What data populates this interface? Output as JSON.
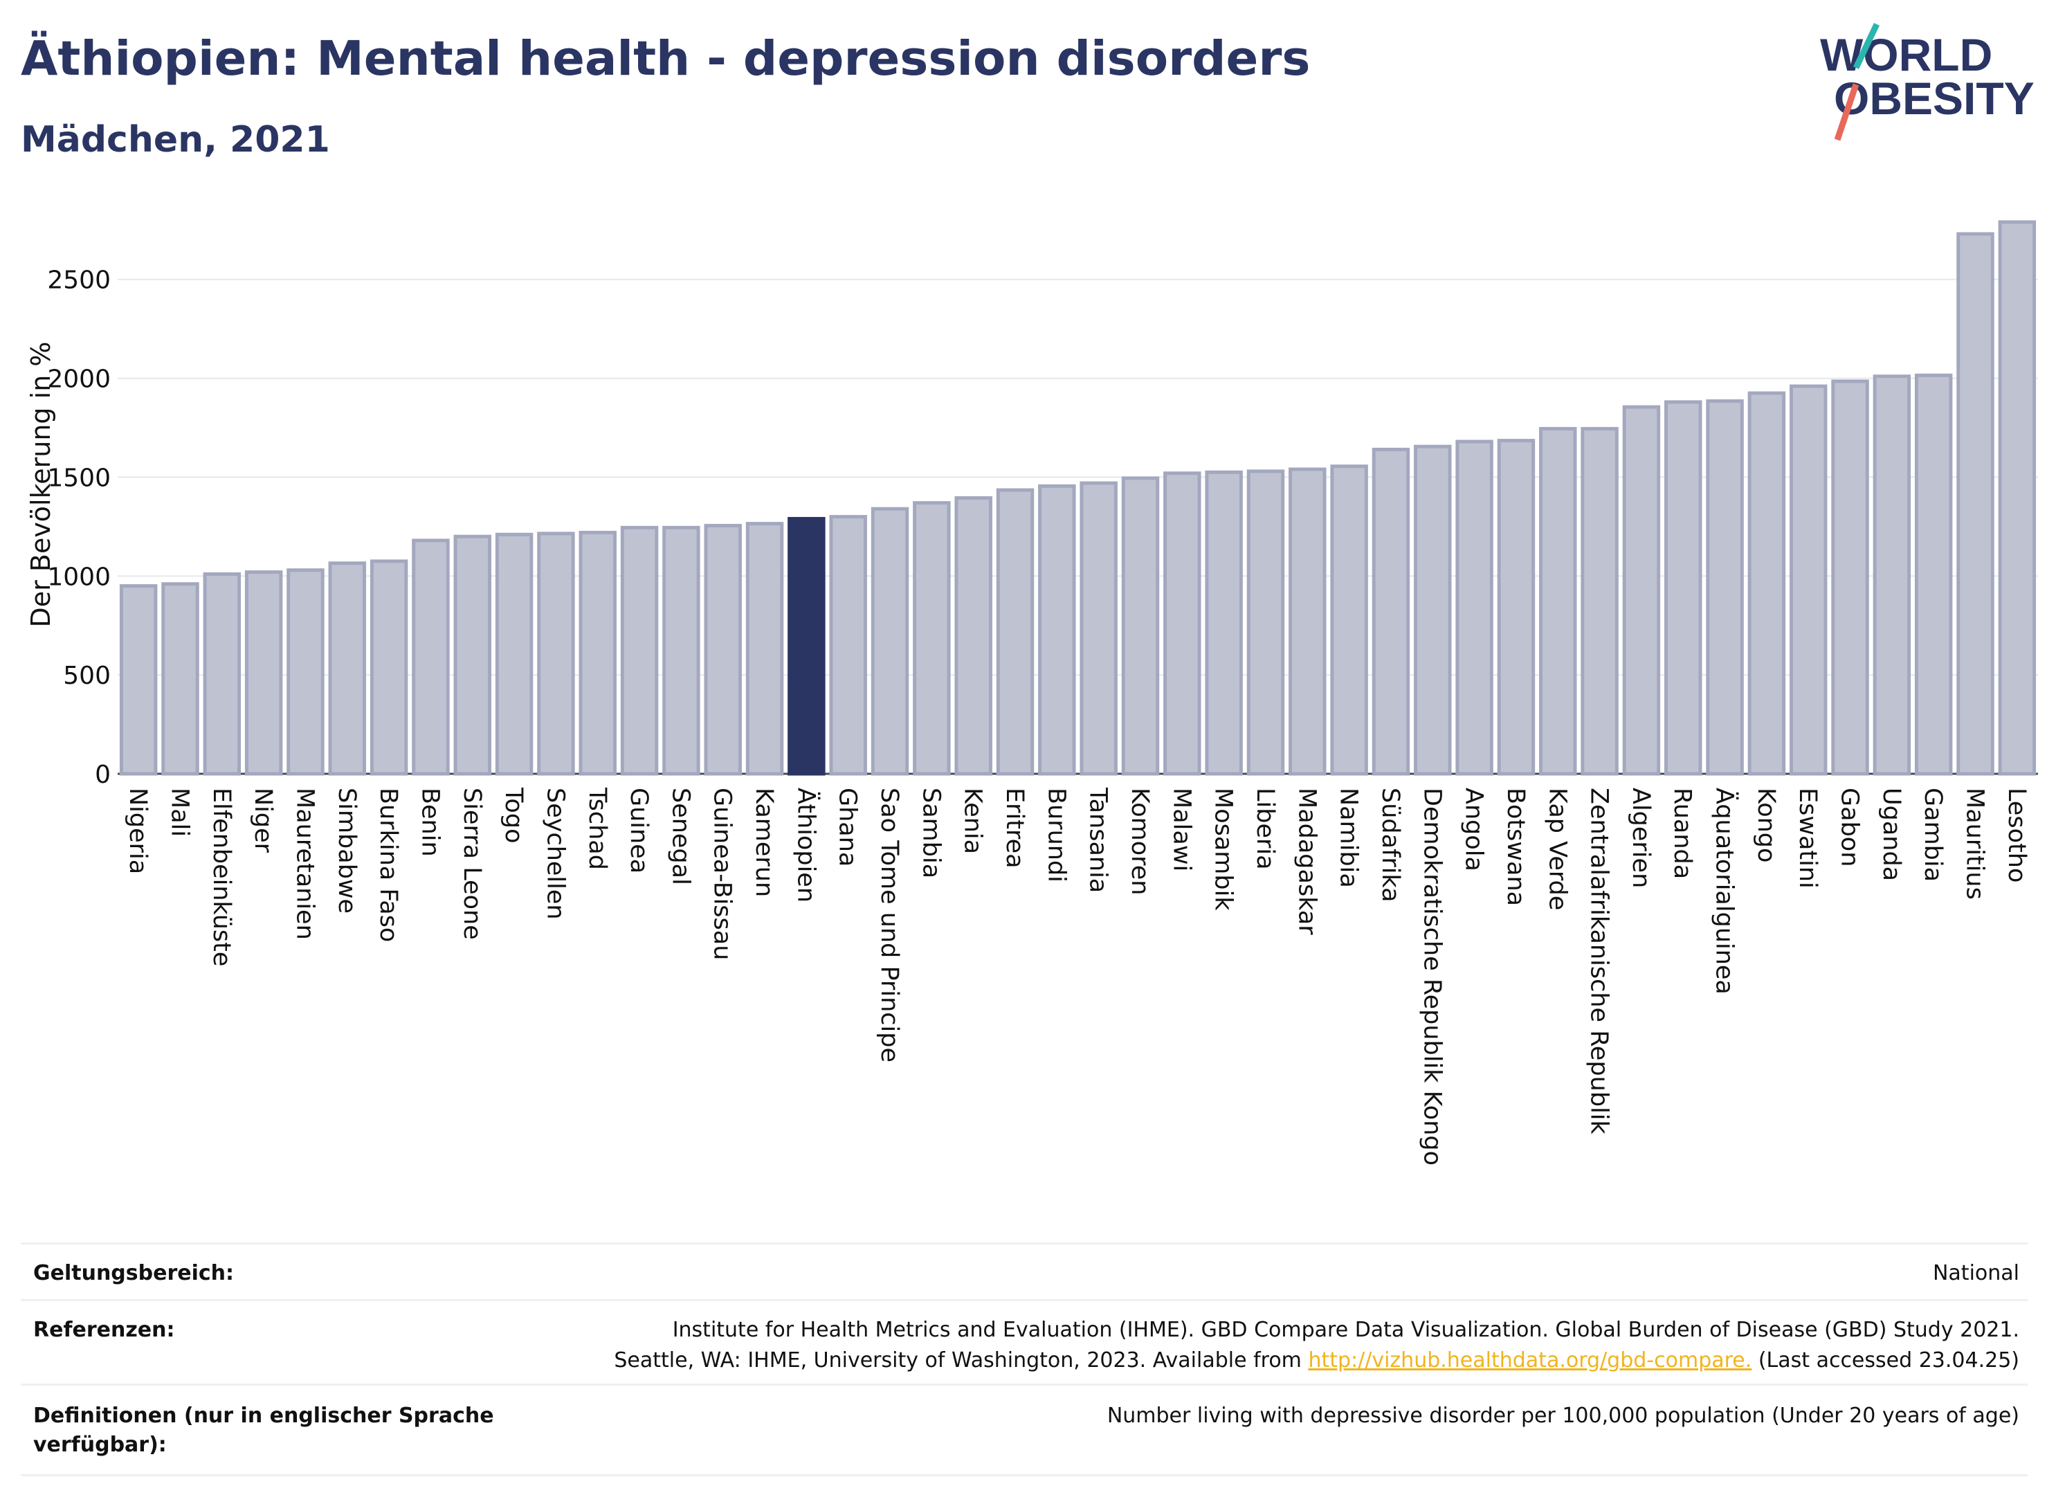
{
  "header": {
    "title": "Äthiopien: Mental health - depression disorders",
    "subtitle": "Mädchen, 2021"
  },
  "logo": {
    "line1": "WORLD",
    "line2": "OBESITY",
    "accent_teal": "#2bb5b0",
    "accent_coral": "#e8685a"
  },
  "colors": {
    "bar": "#bfc3d1",
    "bar_border": "#a3a8bf",
    "highlight": "#2a3563",
    "text": "#2a3563",
    "grid": "#e6e8ee"
  },
  "chart_data": {
    "type": "bar",
    "ylabel": "Der Bevölkerung in %",
    "ylim": [
      0,
      2800
    ],
    "yticks": [
      0,
      500,
      1000,
      1500,
      2000,
      2500
    ],
    "highlight": "Äthiopien",
    "categories": [
      "Nigeria",
      "Mali",
      "Elfenbeinküste",
      "Niger",
      "Mauretanien",
      "Simbabwe",
      "Burkina Faso",
      "Benin",
      "Sierra Leone",
      "Togo",
      "Seychellen",
      "Tschad",
      "Guinea",
      "Senegal",
      "Guinea-Bissau",
      "Kamerun",
      "Äthiopien",
      "Ghana",
      "Sao Tome und Principe",
      "Sambia",
      "Kenia",
      "Eritrea",
      "Burundi",
      "Tansania",
      "Komoren",
      "Malawi",
      "Mosambik",
      "Liberia",
      "Madagaskar",
      "Namibia",
      "Südafrika",
      "Demokratische Republik Kongo",
      "Angola",
      "Botswana",
      "Kap Verde",
      "Zentralafrikanische Republik",
      "Algerien",
      "Ruanda",
      "Äquatorialguinea",
      "Kongo",
      "Eswatini",
      "Gabon",
      "Uganda",
      "Gambia",
      "Mauritius",
      "Lesotho"
    ],
    "values": [
      950,
      960,
      1010,
      1020,
      1030,
      1065,
      1075,
      1180,
      1200,
      1210,
      1215,
      1220,
      1245,
      1245,
      1255,
      1265,
      1290,
      1300,
      1340,
      1370,
      1395,
      1435,
      1455,
      1470,
      1495,
      1520,
      1525,
      1530,
      1540,
      1555,
      1640,
      1655,
      1680,
      1685,
      1745,
      1745,
      1855,
      1880,
      1885,
      1925,
      1960,
      1985,
      2010,
      2015,
      2730,
      2790
    ]
  },
  "footer": {
    "scope_label": "Geltungsbereich:",
    "scope_value": "National",
    "refs_label": "Referenzen:",
    "refs_line1": "Institute for Health Metrics and Evaluation (IHME). GBD Compare Data Visualization. Global Burden of Disease (GBD) Study 2021.",
    "refs_line2_pre": "Seattle, WA: IHME, University of Washington, 2023. Available from ",
    "refs_link": "http://vizhub.healthdata.org/gbd-compare.",
    "refs_line2_post": " (Last accessed 23.04.25)",
    "def_label_line1": "Definitionen (nur in englischer Sprache",
    "def_label_line2": "verfügbar):",
    "def_value": "Number living with depressive disorder per 100,000 population (Under 20 years of age)"
  }
}
